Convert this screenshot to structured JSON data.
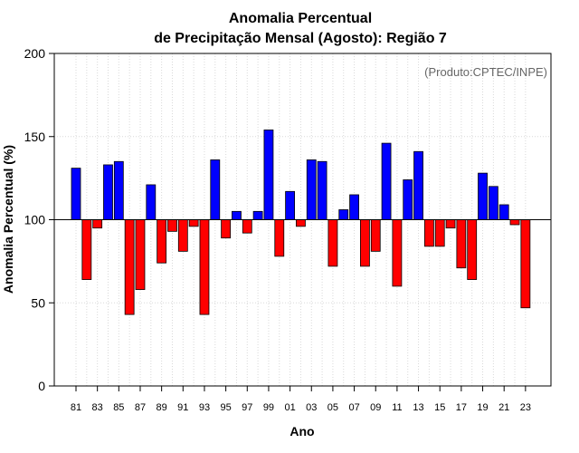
{
  "chart_data": {
    "type": "bar",
    "title_line1": "Anomalia Percentual",
    "title_line2": "de Precipitação Mensal (Agosto): Região 7",
    "xlabel": "Ano",
    "ylabel": "Anomalia Percentual (%)",
    "credit": "(Produto:CPTEC/INPE)",
    "ylim": [
      0,
      200
    ],
    "yticks": [
      0,
      50,
      100,
      150,
      200
    ],
    "baseline": 100,
    "categories": [
      "81",
      "82",
      "83",
      "84",
      "85",
      "86",
      "87",
      "88",
      "89",
      "90",
      "91",
      "92",
      "93",
      "94",
      "95",
      "96",
      "97",
      "98",
      "99",
      "00",
      "01",
      "02",
      "03",
      "04",
      "05",
      "06",
      "07",
      "08",
      "09",
      "10",
      "11",
      "12",
      "13",
      "14",
      "15",
      "16",
      "17",
      "18",
      "19",
      "20",
      "21",
      "22",
      "23"
    ],
    "xtick_labels": [
      "81",
      "83",
      "85",
      "87",
      "89",
      "91",
      "93",
      "95",
      "97",
      "99",
      "01",
      "03",
      "05",
      "07",
      "09",
      "11",
      "13",
      "15",
      "17",
      "19",
      "21",
      "23"
    ],
    "values": [
      131,
      64,
      95,
      133,
      135,
      43,
      58,
      121,
      74,
      93,
      81,
      96,
      43,
      136,
      89,
      105,
      92,
      105,
      154,
      78,
      117,
      96,
      136,
      135,
      72,
      106,
      115,
      72,
      81,
      146,
      60,
      124,
      141,
      84,
      84,
      95,
      71,
      64,
      128,
      120,
      109,
      97,
      47
    ],
    "colors": {
      "above": "#0000ff",
      "below": "#ff0000",
      "grid": "#d9d9d9"
    }
  }
}
